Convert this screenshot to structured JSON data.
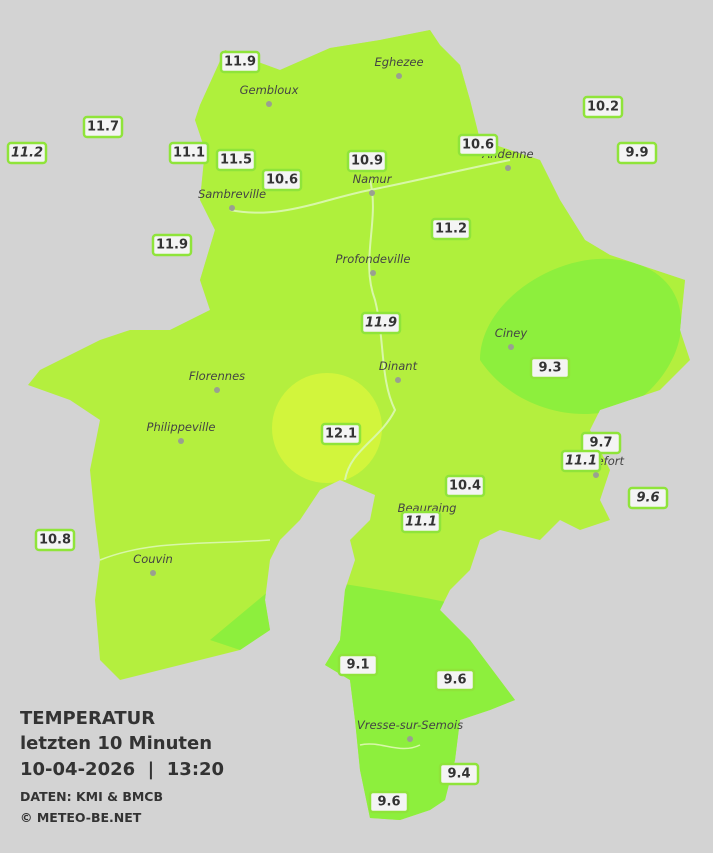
{
  "map_title": [
    "TEMPERATUR",
    "letzten 10 Minuten",
    "10-04-2026  |  13:20"
  ],
  "credits": [
    "DATEN: KMI & BMCB",
    "© METEO-BE.NET"
  ],
  "cities": [
    "Eghezee",
    "Gembloux",
    "Andenne",
    "Namur",
    "Sambreville",
    "Profondeville",
    "Ciney",
    "Dinant",
    "Florennes",
    "Philippeville",
    "Rochefort",
    "Beauraing",
    "Couvin",
    "Vresse-sur-Semois"
  ],
  "stations": [
    {
      "value": 11.9,
      "italic": false
    },
    {
      "value": 11.7,
      "italic": false
    },
    {
      "value": 11.2,
      "italic": true
    },
    {
      "value": 11.1,
      "italic": false
    },
    {
      "value": 11.5,
      "italic": false
    },
    {
      "value": 10.6,
      "italic": false
    },
    {
      "value": 10.9,
      "italic": false
    },
    {
      "value": 10.6,
      "italic": false
    },
    {
      "value": 10.2,
      "italic": false
    },
    {
      "value": 9.9,
      "italic": false
    },
    {
      "value": 11.9,
      "italic": false
    },
    {
      "value": 11.2,
      "italic": false
    },
    {
      "value": 11.9,
      "italic": true
    },
    {
      "value": 9.3,
      "italic": false
    },
    {
      "value": 12.1,
      "italic": false
    },
    {
      "value": 9.7,
      "italic": false
    },
    {
      "value": 11.1,
      "italic": true
    },
    {
      "value": 9.6,
      "italic": true
    },
    {
      "value": 10.4,
      "italic": false
    },
    {
      "value": 11.1,
      "italic": true
    },
    {
      "value": 10.8,
      "italic": false
    },
    {
      "value": 9.1,
      "italic": false
    },
    {
      "value": 9.6,
      "italic": false
    },
    {
      "value": 9.4,
      "italic": false
    },
    {
      "value": 9.6,
      "italic": false
    }
  ]
}
